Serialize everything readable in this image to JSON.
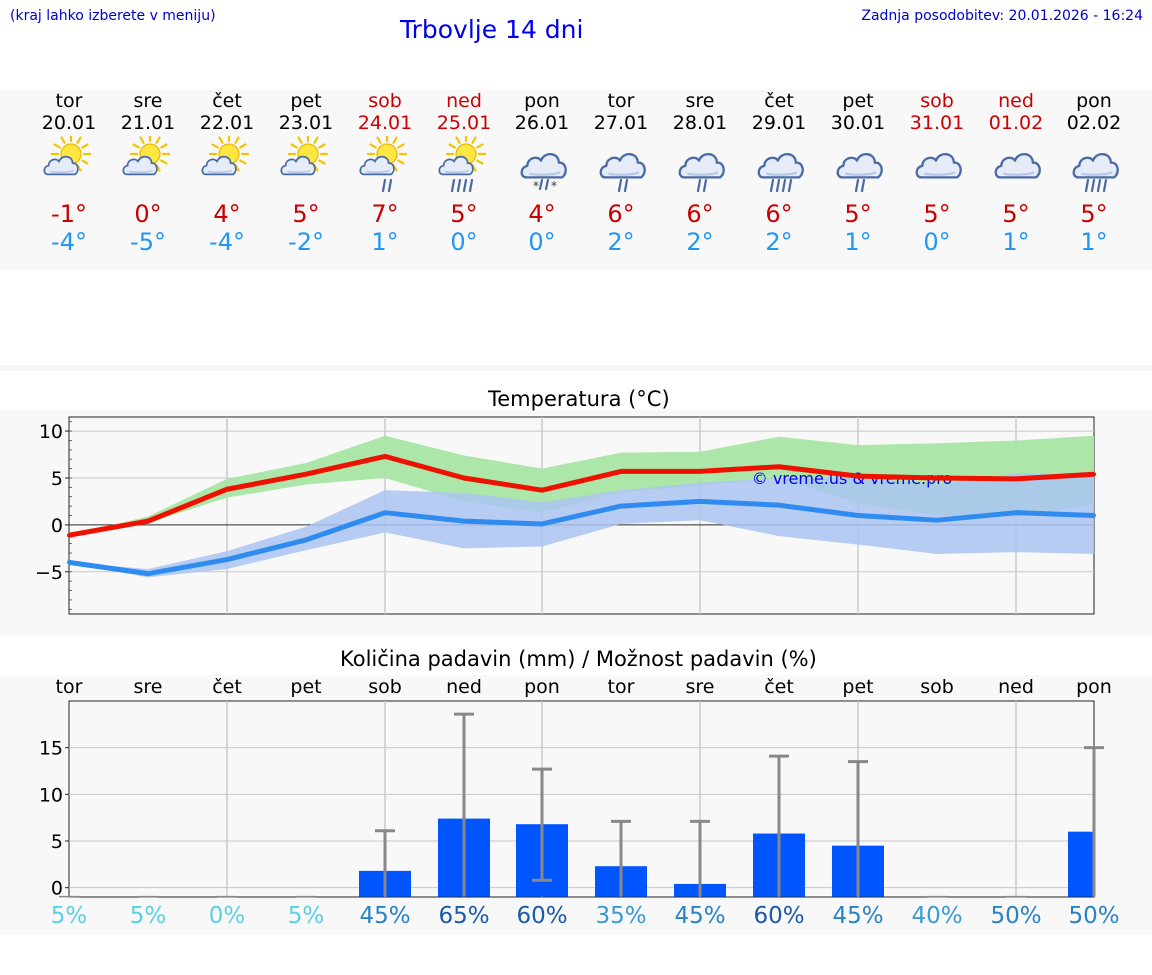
{
  "header": {
    "region_link": "(kraj lahko izberete v meniju)",
    "title": "Trbovlje 14 dni",
    "updated": "Zadnja posodobitev: 20.01.2026 - 16:24"
  },
  "days": [
    {
      "name": "tor",
      "date": "20.01",
      "weekend": false,
      "icon": "sun-cloud-icon",
      "tmax": "-1°",
      "tmin": "-4°"
    },
    {
      "name": "sre",
      "date": "21.01",
      "weekend": false,
      "icon": "sun-cloud-icon",
      "tmax": "0°",
      "tmin": "-5°"
    },
    {
      "name": "čet",
      "date": "22.01",
      "weekend": false,
      "icon": "sun-cloud-icon",
      "tmax": "4°",
      "tmin": "-4°"
    },
    {
      "name": "pet",
      "date": "23.01",
      "weekend": false,
      "icon": "sun-cloud-icon",
      "tmax": "5°",
      "tmin": "-2°"
    },
    {
      "name": "sob",
      "date": "24.01",
      "weekend": true,
      "icon": "sun-cloud-rain-icon",
      "tmax": "7°",
      "tmin": "1°"
    },
    {
      "name": "ned",
      "date": "25.01",
      "weekend": true,
      "icon": "sun-cloud-heavy-rain-icon",
      "tmax": "5°",
      "tmin": "0°"
    },
    {
      "name": "pon",
      "date": "26.01",
      "weekend": false,
      "icon": "cloud-sleet-icon",
      "tmax": "4°",
      "tmin": "0°"
    },
    {
      "name": "tor",
      "date": "27.01",
      "weekend": false,
      "icon": "cloud-rain-icon",
      "tmax": "6°",
      "tmin": "2°"
    },
    {
      "name": "sre",
      "date": "28.01",
      "weekend": false,
      "icon": "cloud-rain-icon",
      "tmax": "6°",
      "tmin": "2°"
    },
    {
      "name": "čet",
      "date": "29.01",
      "weekend": false,
      "icon": "cloud-heavy-rain-icon",
      "tmax": "6°",
      "tmin": "2°"
    },
    {
      "name": "pet",
      "date": "30.01",
      "weekend": false,
      "icon": "cloud-rain-icon",
      "tmax": "5°",
      "tmin": "1°"
    },
    {
      "name": "sob",
      "date": "31.01",
      "weekend": true,
      "icon": "cloud-icon",
      "tmax": "5°",
      "tmin": "0°"
    },
    {
      "name": "ned",
      "date": "01.02",
      "weekend": true,
      "icon": "cloud-icon",
      "tmax": "5°",
      "tmin": "1°"
    },
    {
      "name": "pon",
      "date": "02.02",
      "weekend": false,
      "icon": "cloud-heavy-rain-icon",
      "tmax": "5°",
      "tmin": "1°"
    }
  ],
  "colors": {
    "max_line": "#ee1100",
    "max_band": "#a8e6a4",
    "min_line": "#2f8bf0",
    "min_band": "#aac4f2",
    "overlap_band": "#7fbfb5",
    "bar": "#0055ff",
    "whisker": "#888888",
    "watermark": "#0000ee"
  },
  "chart_data": [
    {
      "type": "line",
      "title": "Temperatura (°C)",
      "watermark": "© vreme.us & vreme.pro",
      "ylim": [
        -9.5,
        11.5
      ],
      "yticks": [
        10,
        5,
        0,
        -5
      ],
      "ytick_labels": [
        "10",
        "5",
        "0",
        "−5"
      ],
      "x": [
        0,
        1,
        2,
        3,
        4,
        5,
        6,
        7,
        8,
        9,
        10,
        11,
        12,
        13
      ],
      "series": [
        {
          "name": "max",
          "values": [
            -1.1,
            0.4,
            3.8,
            5.4,
            7.3,
            5.0,
            3.7,
            5.7,
            5.7,
            6.2,
            5.2,
            5.0,
            4.9,
            5.4
          ],
          "band_low": [
            -1.1,
            0.2,
            2.9,
            4.3,
            5.0,
            2.5,
            1.3,
            3.5,
            4.2,
            5.0,
            2.3,
            1.0,
            0.8,
            2.2
          ],
          "band_high": [
            -1.1,
            0.9,
            4.9,
            6.6,
            9.5,
            7.4,
            6.0,
            7.7,
            7.8,
            9.4,
            8.5,
            8.7,
            9.0,
            9.5
          ]
        },
        {
          "name": "min",
          "values": [
            -4.0,
            -5.2,
            -3.7,
            -1.6,
            1.3,
            0.4,
            0.1,
            2.0,
            2.5,
            2.1,
            1.0,
            0.5,
            1.3,
            1.0
          ],
          "band_low": [
            -4.0,
            -5.6,
            -4.7,
            -2.7,
            -0.8,
            -2.5,
            -2.3,
            0.1,
            0.5,
            -1.2,
            -2.1,
            -3.1,
            -2.9,
            -3.1
          ],
          "band_high": [
            -4.0,
            -4.7,
            -2.8,
            -0.2,
            3.7,
            3.4,
            2.4,
            3.7,
            4.5,
            5.0,
            5.0,
            4.3,
            5.5,
            5.3
          ]
        }
      ]
    },
    {
      "type": "bar",
      "title": "Količina padavin (mm) / Možnost padavin (%)",
      "ylim": [
        -1,
        20
      ],
      "yticks": [
        15,
        10,
        5,
        0
      ],
      "ytick_labels": [
        "15",
        "10",
        "5",
        "0"
      ],
      "categories": [
        "tor",
        "sre",
        "čet",
        "pet",
        "sob",
        "ned",
        "pon",
        "tor",
        "sre",
        "čet",
        "pet",
        "sob",
        "ned",
        "pon"
      ],
      "values": [
        0,
        0,
        0,
        0,
        1.8,
        7.4,
        6.8,
        2.3,
        0.4,
        5.8,
        4.5,
        0,
        0,
        6.0
      ],
      "error_high": [
        0,
        0,
        0,
        0,
        6.1,
        18.6,
        12.7,
        7.1,
        7.1,
        14.1,
        13.5,
        0,
        0,
        15.0
      ],
      "error_low": [
        0,
        0,
        0,
        0,
        0,
        0,
        0.8,
        0,
        0,
        0,
        0,
        0,
        0,
        0
      ],
      "chance": [
        "5%",
        "5%",
        "0%",
        "5%",
        "45%",
        "65%",
        "60%",
        "35%",
        "45%",
        "60%",
        "45%",
        "40%",
        "50%",
        "50%"
      ],
      "chance_values": [
        5,
        5,
        0,
        5,
        45,
        65,
        60,
        35,
        45,
        60,
        45,
        40,
        50,
        50
      ]
    }
  ]
}
